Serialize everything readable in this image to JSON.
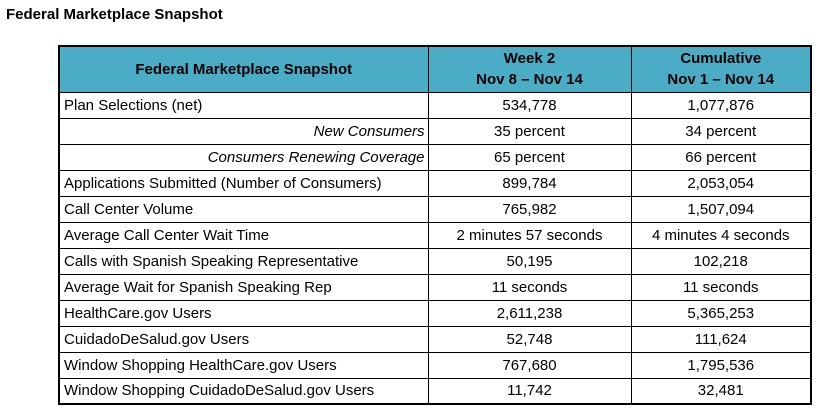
{
  "page_title": "Federal Marketplace Snapshot",
  "table": {
    "header": {
      "metric_col": "Federal Marketplace Snapshot",
      "week2_line1": "Week 2",
      "week2_line2": "Nov 8 – Nov 14",
      "cumulative_line1": "Cumulative",
      "cumulative_line2": "Nov 1 – Nov 14"
    },
    "rows": [
      {
        "label": "Plan Selections (net)",
        "week2": "534,778",
        "cumulative": "1,077,876"
      },
      {
        "label": "New Consumers",
        "week2": "35 percent",
        "cumulative": "34 percent"
      },
      {
        "label": "Consumers Renewing Coverage",
        "week2": "65 percent",
        "cumulative": "66 percent"
      },
      {
        "label": "Applications Submitted (Number of Consumers)",
        "week2": "899,784",
        "cumulative": "2,053,054"
      },
      {
        "label": "Call Center Volume",
        "week2": "765,982",
        "cumulative": "1,507,094"
      },
      {
        "label": "Average Call Center Wait Time",
        "week2": "2 minutes 57 seconds",
        "cumulative": "4 minutes 4 seconds"
      },
      {
        "label": "Calls with Spanish Speaking Representative",
        "week2": "50,195",
        "cumulative": "102,218"
      },
      {
        "label": "Average Wait for Spanish Speaking Rep",
        "week2": "11 seconds",
        "cumulative": "11 seconds"
      },
      {
        "label": "HealthCare.gov Users",
        "week2": "2,611,238",
        "cumulative": "5,365,253"
      },
      {
        "label": "CuidadoDeSalud.gov Users",
        "week2": "52,748",
        "cumulative": "111,624"
      },
      {
        "label": "Window Shopping HealthCare.gov Users",
        "week2": "767,680",
        "cumulative": "1,795,536"
      },
      {
        "label": "Window Shopping CuidadoDeSalud.gov Users",
        "week2": "11,742",
        "cumulative": "32,481"
      }
    ],
    "colors": {
      "header_bg": "#4BACC6",
      "border": "#000000",
      "text": "#000000"
    }
  }
}
